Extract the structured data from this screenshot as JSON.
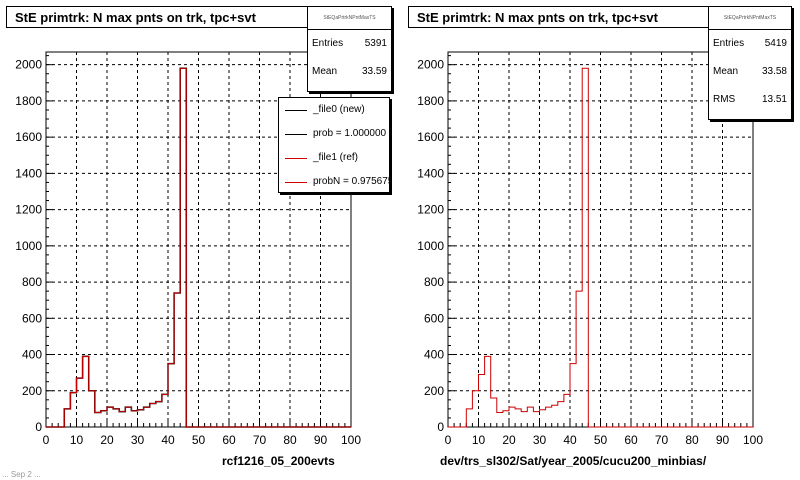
{
  "footer": {
    "text": "... Sep 2 ..."
  },
  "colors": {
    "new": "#000000",
    "ref": "#cc0000",
    "grid": "#000000"
  },
  "legend": {
    "items": [
      {
        "label": "_file0 (new)",
        "color": "#000000"
      },
      {
        "label": "prob = 1.000000",
        "color": "#000000"
      },
      {
        "label": "_file1 (ref)",
        "color": "#cc0000"
      },
      {
        "label": "probN = 0.975675",
        "color": "#cc0000"
      }
    ]
  },
  "panels": [
    {
      "title": "StE primtrk: N max pnts on trk, tpc+svt",
      "stats": {
        "name": "StEQaPrtrkNPntMaxTS",
        "rows": [
          {
            "label": "Entries",
            "value": "5391"
          },
          {
            "label": "Mean",
            "value": "33.59"
          }
        ]
      },
      "xlabel": "rcf1216_05_200evts"
    },
    {
      "title": "StE primtrk: N max pnts on trk, tpc+svt",
      "stats": {
        "name": "StEQaPrtrkNPntMaxTS",
        "rows": [
          {
            "label": "Entries",
            "value": "5419"
          },
          {
            "label": "Mean",
            "value": "33.58"
          },
          {
            "label": "RMS",
            "value": "13.51"
          }
        ]
      },
      "xlabel": "dev/trs_sl302/Sat/year_2005/cucu200_minbias/"
    }
  ],
  "chart_data": [
    {
      "type": "bar",
      "title": "StE primtrk: N max pnts on trk, tpc+svt",
      "xlabel": "rcf1216_05_200evts",
      "ylabel": "",
      "xlim": [
        0,
        100
      ],
      "ylim": [
        0,
        2070
      ],
      "x_ticks": [
        0,
        10,
        20,
        30,
        40,
        50,
        60,
        70,
        80,
        90,
        100
      ],
      "y_ticks": [
        0,
        200,
        400,
        600,
        800,
        1000,
        1200,
        1400,
        1600,
        1800,
        2000
      ],
      "grid": true,
      "legend_position": "top-right",
      "bin_width": 2,
      "bin_starts": [
        0,
        2,
        4,
        6,
        8,
        10,
        12,
        14,
        16,
        18,
        20,
        22,
        24,
        26,
        28,
        30,
        32,
        34,
        36,
        38,
        40,
        42,
        44,
        46,
        48
      ],
      "series": [
        {
          "name": "_file0 (new)",
          "color": "#000000",
          "values": [
            0,
            0,
            0,
            100,
            190,
            270,
            390,
            200,
            80,
            90,
            110,
            100,
            85,
            110,
            90,
            95,
            110,
            130,
            140,
            180,
            350,
            740,
            1980,
            0,
            0
          ]
        },
        {
          "name": "_file1 (ref)",
          "color": "#cc0000",
          "values": [
            0,
            0,
            0,
            100,
            190,
            270,
            390,
            200,
            80,
            90,
            110,
            100,
            85,
            110,
            90,
            95,
            110,
            130,
            140,
            180,
            350,
            740,
            1980,
            0,
            0
          ]
        }
      ]
    },
    {
      "type": "bar",
      "title": "StE primtrk: N max pnts on trk, tpc+svt",
      "xlabel": "dev/trs_sl302/Sat/year_2005/cucu200_minbias/",
      "ylabel": "",
      "xlim": [
        0,
        100
      ],
      "ylim": [
        0,
        2070
      ],
      "x_ticks": [
        0,
        10,
        20,
        30,
        40,
        50,
        60,
        70,
        80,
        90,
        100
      ],
      "y_ticks": [
        0,
        200,
        400,
        600,
        800,
        1000,
        1200,
        1400,
        1600,
        1800,
        2000
      ],
      "grid": true,
      "bin_width": 2,
      "bin_starts": [
        0,
        2,
        4,
        6,
        8,
        10,
        12,
        14,
        16,
        18,
        20,
        22,
        24,
        26,
        28,
        30,
        32,
        34,
        36,
        38,
        40,
        42,
        44,
        46,
        48
      ],
      "series": [
        {
          "color": "#cc0000",
          "values": [
            0,
            0,
            0,
            100,
            200,
            290,
            390,
            160,
            80,
            90,
            110,
            100,
            85,
            110,
            85,
            95,
            110,
            120,
            140,
            180,
            350,
            750,
            1980,
            0,
            0
          ]
        }
      ]
    }
  ]
}
